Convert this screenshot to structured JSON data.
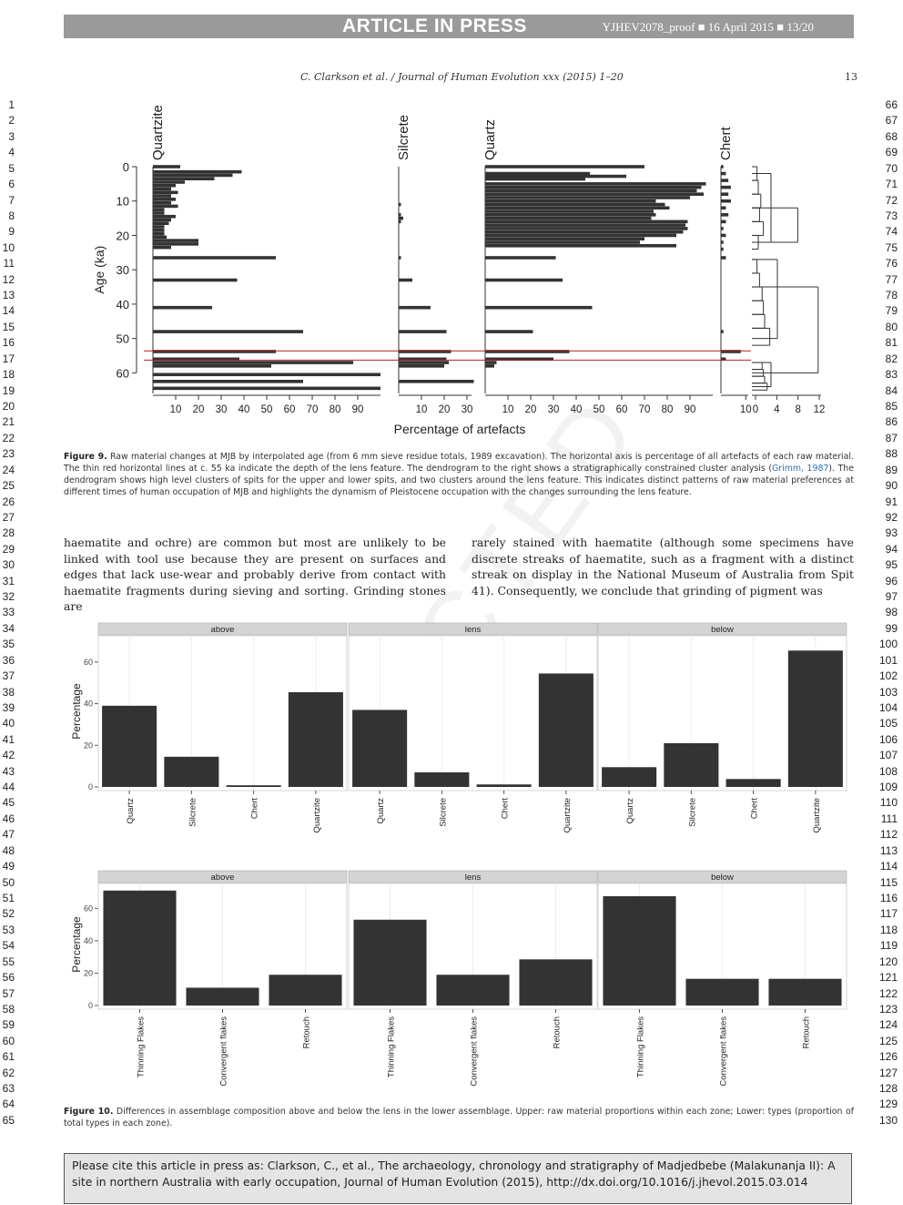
{
  "banner": {
    "article_in_press": "ARTICLE IN PRESS",
    "proof_line": "YJHEV2078_proof ■ 16 April 2015 ■ 13/20"
  },
  "running_head": {
    "citation": "C. Clarkson et al. / Journal of Human Evolution xxx (2015) 1–20",
    "page": "13"
  },
  "line_numbers": {
    "left_start": 1,
    "left_end": 65,
    "right_start": 66,
    "right_end": 130
  },
  "figure9": {
    "caption_label": "Figure 9.",
    "caption_text": "Raw material changes at MJB by interpolated age (from 6 mm sieve residue totals, 1989 excavation). The horizontal axis is percentage of all artefacts of each raw material. The thin red horizontal lines at c. 55 ka indicate the depth of the lens feature. The dendrogram to the right shows a stratigraphically constrained cluster analysis (",
    "caption_link": "Grimm, 1987",
    "caption_text2": "). The dendrogram shows high level clusters of spits for the upper and lower spits, and two clusters around the lens feature. This indicates distinct patterns of raw material preferences at different times of human occupation of MJB and highlights the dynamism of Pleistocene occupation with the changes surrounding the lens feature."
  },
  "body_text": {
    "left": "haematite and ochre) are common but most are unlikely to be linked with tool use because they are present on surfaces and edges that lack use-wear and probably derive from contact with haematite fragments during sieving and sorting. Grinding stones are",
    "right": "rarely stained with haematite (although some specimens have discrete streaks of haematite, such as a fragment with a distinct streak on display in the National Museum of Australia from Spit 41). Consequently, we conclude that grinding of pigment was"
  },
  "figure10": {
    "caption_label": "Figure 10.",
    "caption_text": "Differences in assemblage composition above and below the lens in the lower assemblage. Upper: raw material proportions within each zone; Lower: types (proportion of total types in each zone)."
  },
  "cite_box": "Please cite this article in press as: Clarkson, C., et al., The archaeology, chronology and stratigraphy of Madjedbebe (Malakunanja II): A site in northern Australia with early occupation, Journal of Human Evolution (2015), http://dx.doi.org/10.1016/j.jhevol.2015.03.014",
  "watermark": "CTED",
  "chart_data": [
    {
      "type": "bar",
      "orientation": "horizontal",
      "panel": "Figure 9 stratigraphic diagram",
      "xlabel": "Percentage of artefacts",
      "ylabel": "Age (ka)",
      "ylim": [
        0,
        66
      ],
      "yticks": [
        "0",
        "10",
        "20",
        "30",
        "40",
        "50",
        "60"
      ],
      "lens_lines_ka": [
        53.6,
        56.3
      ],
      "series": [
        {
          "name": "Quartzite",
          "xticks": [
            "10",
            "20",
            "30",
            "40",
            "50",
            "60",
            "70",
            "80",
            "90"
          ],
          "xmax": 100,
          "bars": [
            [
              0,
              12
            ],
            [
              1.5,
              39
            ],
            [
              2.5,
              35
            ],
            [
              3.5,
              27
            ],
            [
              4.5,
              14
            ],
            [
              5.5,
              10
            ],
            [
              6.5,
              8
            ],
            [
              7.5,
              11
            ],
            [
              8.5,
              8
            ],
            [
              9.5,
              10
            ],
            [
              10.5,
              8
            ],
            [
              11.5,
              11
            ],
            [
              12.5,
              5
            ],
            [
              13.5,
              5
            ],
            [
              14.5,
              10
            ],
            [
              15.5,
              8
            ],
            [
              16.5,
              7
            ],
            [
              17.5,
              5
            ],
            [
              18.5,
              5
            ],
            [
              19.5,
              5
            ],
            [
              20.5,
              6
            ],
            [
              21.5,
              20
            ],
            [
              22.5,
              20
            ],
            [
              23.5,
              8
            ],
            [
              26.5,
              54
            ],
            [
              33,
              37
            ],
            [
              41,
              26
            ],
            [
              48,
              66
            ],
            [
              53.8,
              54
            ],
            [
              56,
              38
            ],
            [
              57,
              88
            ],
            [
              58,
              52
            ],
            [
              60.5,
              100
            ],
            [
              62.5,
              66
            ],
            [
              64.5,
              100
            ]
          ]
        },
        {
          "name": "Silcrete",
          "xticks": [
            "10",
            "20",
            "30"
          ],
          "xmax": 32,
          "bars": [
            [
              11,
              1
            ],
            [
              14,
              1
            ],
            [
              15,
              2
            ],
            [
              16,
              1
            ],
            [
              26.5,
              1
            ],
            [
              33,
              6
            ],
            [
              41,
              14
            ],
            [
              48,
              21
            ],
            [
              53.8,
              23
            ],
            [
              56,
              21
            ],
            [
              57,
              22
            ],
            [
              58,
              20
            ],
            [
              62.5,
              33
            ]
          ]
        },
        {
          "name": "Quartz",
          "xticks": [
            "10",
            "20",
            "30",
            "40",
            "50",
            "60",
            "70",
            "80",
            "90"
          ],
          "xmax": 100,
          "bars": [
            [
              0,
              70
            ],
            [
              2,
              46
            ],
            [
              2.8,
              62
            ],
            [
              3.6,
              44
            ],
            [
              5,
              97
            ],
            [
              6,
              95
            ],
            [
              7,
              93
            ],
            [
              8,
              96
            ],
            [
              9,
              90
            ],
            [
              10,
              75
            ],
            [
              11,
              79
            ],
            [
              12,
              81
            ],
            [
              13,
              74
            ],
            [
              14,
              75
            ],
            [
              15,
              73
            ],
            [
              16,
              89
            ],
            [
              17,
              88
            ],
            [
              18,
              89
            ],
            [
              19,
              87
            ],
            [
              20,
              84
            ],
            [
              21,
              70
            ],
            [
              22,
              68
            ],
            [
              23,
              84
            ],
            [
              26.5,
              31
            ],
            [
              33,
              34
            ],
            [
              41,
              47
            ],
            [
              48,
              21
            ],
            [
              53.8,
              37
            ],
            [
              56,
              30
            ],
            [
              57,
              5
            ],
            [
              58,
              4
            ]
          ]
        },
        {
          "name": "Chert",
          "xticks": [
            "10"
          ],
          "xmax": 11,
          "bars": [
            [
              0,
              1
            ],
            [
              2,
              2
            ],
            [
              4,
              3
            ],
            [
              6,
              4
            ],
            [
              8,
              3
            ],
            [
              10,
              4
            ],
            [
              12,
              2
            ],
            [
              14,
              3
            ],
            [
              16,
              2
            ],
            [
              18,
              1
            ],
            [
              20,
              2
            ],
            [
              22,
              1
            ],
            [
              24,
              1
            ],
            [
              26.5,
              2
            ],
            [
              48,
              1
            ],
            [
              53.8,
              8
            ],
            [
              56,
              2
            ]
          ]
        }
      ],
      "dendrogram_axis": [
        "0",
        "4",
        "8",
        "12"
      ]
    },
    {
      "type": "bar",
      "panel": "Figure 10 upper - raw material proportions",
      "ylabel": "Percentage",
      "ylim": [
        0,
        70
      ],
      "yticks": [
        "0",
        "20",
        "40",
        "60"
      ],
      "categories": [
        "Quartz",
        "Silcrete",
        "Chert",
        "Quartzite"
      ],
      "facets": [
        {
          "name": "above",
          "values": [
            39,
            14.5,
            0.8,
            45.5
          ]
        },
        {
          "name": "lens",
          "values": [
            37,
            7,
            1.2,
            54.5
          ]
        },
        {
          "name": "below",
          "values": [
            9.5,
            21,
            3.8,
            65.5
          ]
        }
      ]
    },
    {
      "type": "bar",
      "panel": "Figure 10 lower - types",
      "ylabel": "Percentage",
      "ylim": [
        0,
        72
      ],
      "yticks": [
        "0",
        "20",
        "40",
        "60"
      ],
      "categories": [
        "Thinning Flakes",
        "Convergent flakes",
        "Retouch"
      ],
      "facets": [
        {
          "name": "above",
          "values": [
            71,
            11,
            19
          ]
        },
        {
          "name": "lens",
          "values": [
            53,
            19,
            28.5
          ]
        },
        {
          "name": "below",
          "values": [
            67.5,
            16.5,
            16.5
          ]
        }
      ]
    }
  ],
  "colors": {
    "bar": "#333333",
    "lens_line": "#b22222",
    "facet_strip": "#d4d4d4",
    "banner": "#9a9a9a",
    "link": "#2a6fb0"
  }
}
